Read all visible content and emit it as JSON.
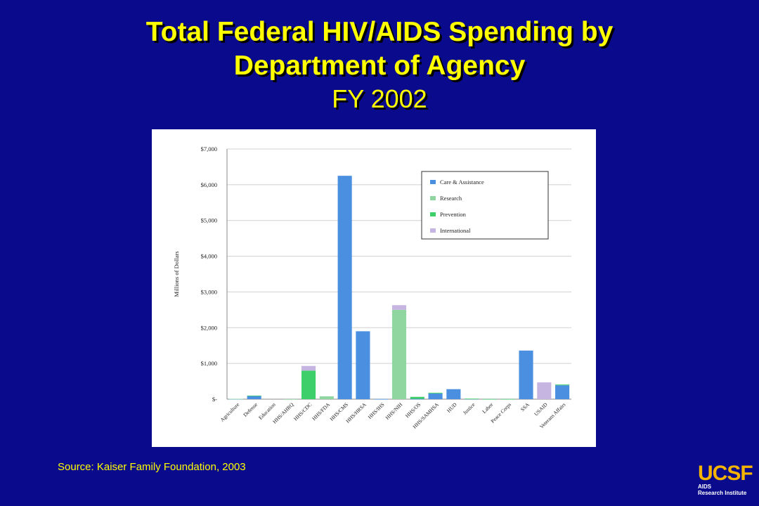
{
  "slide": {
    "title_line1": "Total Federal HIV/AIDS Spending by",
    "title_line2": "Department of Agency",
    "subtitle": "FY 2002",
    "source": "Source: Kaiser Family Foundation, 2003",
    "logo_main": "UCSF",
    "logo_line1": "AIDS",
    "logo_line2": "Research Institute"
  },
  "colors": {
    "background": "#0a0a8c",
    "title": "#ffff00",
    "care": "#4a8fe0",
    "research": "#8fd6a0",
    "prevention": "#3ecf6a",
    "international": "#c5b5e0"
  },
  "chart_data": {
    "type": "bar",
    "stacked": true,
    "ylabel": "Millions of Dollars",
    "xlabel": "",
    "ylim": [
      0,
      7000
    ],
    "yticks": [
      0,
      1000,
      2000,
      3000,
      4000,
      5000,
      6000,
      7000
    ],
    "ytick_labels": [
      "$-",
      "$1,000",
      "$2,000",
      "$3,000",
      "$4,000",
      "$5,000",
      "$6,000",
      "$7,000"
    ],
    "grid": true,
    "legend_position": "top-right",
    "categories": [
      "Agriculture",
      "Defense",
      "Education",
      "HHS/AHRQ",
      "HHS/CDC",
      "HHS/FDA",
      "HHS/CMS",
      "HHS/HRSA",
      "HHS/IHS",
      "HHS/NIH",
      "HHS/OS",
      "HHS/SAMHSA",
      "HUD",
      "Justice",
      "Labor",
      "Peace Corps",
      "SSA",
      "USAID",
      "Veterans Affairs"
    ],
    "series": [
      {
        "name": "Care & Assistance",
        "color": "#4a8fe0",
        "values": [
          5,
          90,
          0,
          0,
          0,
          0,
          6250,
          1900,
          5,
          0,
          10,
          160,
          280,
          10,
          0,
          0,
          1360,
          0,
          390
        ]
      },
      {
        "name": "Research",
        "color": "#8fd6a0",
        "values": [
          5,
          0,
          0,
          2,
          0,
          80,
          0,
          0,
          0,
          2500,
          0,
          0,
          0,
          0,
          0,
          0,
          0,
          0,
          0
        ]
      },
      {
        "name": "Prevention",
        "color": "#3ecf6a",
        "values": [
          0,
          10,
          0,
          0,
          800,
          0,
          0,
          0,
          0,
          0,
          55,
          20,
          0,
          5,
          5,
          5,
          0,
          0,
          20
        ]
      },
      {
        "name": "International",
        "color": "#c5b5e0",
        "values": [
          0,
          0,
          0,
          0,
          130,
          0,
          0,
          0,
          0,
          130,
          0,
          0,
          0,
          0,
          0,
          0,
          0,
          470,
          0
        ]
      }
    ]
  }
}
